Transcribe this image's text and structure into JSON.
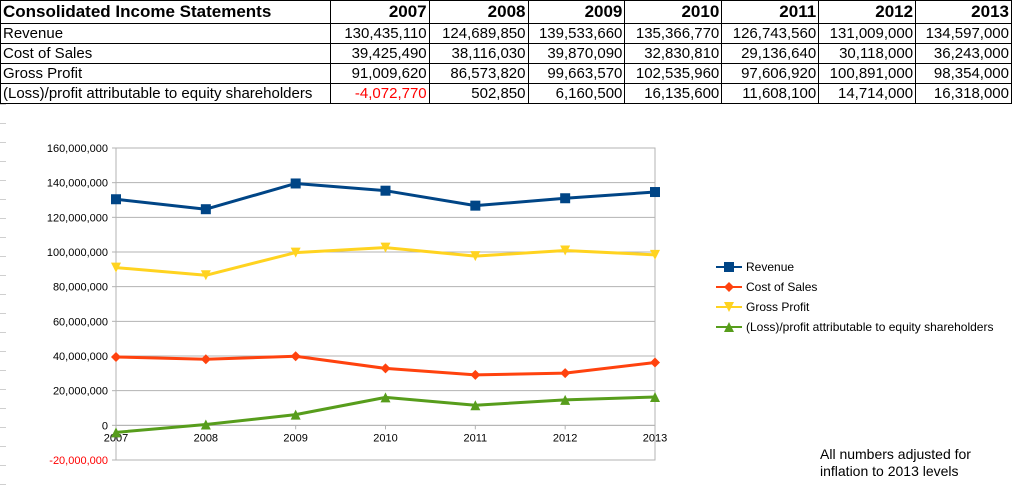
{
  "table": {
    "title": "Consolidated Income Statements",
    "years": [
      "2007",
      "2008",
      "2009",
      "2010",
      "2011",
      "2012",
      "2013"
    ],
    "rows": [
      {
        "label": "Revenue",
        "cells": [
          "130,435,110",
          "124,689,850",
          "139,533,660",
          "135,366,770",
          "126,743,560",
          "131,009,000",
          "134,597,000"
        ]
      },
      {
        "label": "Cost of Sales",
        "cells": [
          "39,425,490",
          "38,116,030",
          "39,870,090",
          "32,830,810",
          "29,136,640",
          "30,118,000",
          "36,243,000"
        ]
      },
      {
        "label": "Gross Profit",
        "cells": [
          "91,009,620",
          "86,573,820",
          "99,663,570",
          "102,535,960",
          "97,606,920",
          "100,891,000",
          "98,354,000"
        ]
      },
      {
        "label": "(Loss)/profit attributable to equity shareholders",
        "cells": [
          "-4,072,770",
          "502,850",
          "6,160,500",
          "16,135,600",
          "11,608,100",
          "14,714,000",
          "16,318,000"
        ]
      }
    ],
    "negative_color": "#ff0000"
  },
  "chart_data": {
    "type": "line",
    "categories": [
      "2007",
      "2008",
      "2009",
      "2010",
      "2011",
      "2012",
      "2013"
    ],
    "series": [
      {
        "name": "Revenue",
        "color": "#004586",
        "marker": "square",
        "values": [
          130435110,
          124689850,
          139533660,
          135366770,
          126743560,
          131009000,
          134597000
        ]
      },
      {
        "name": "Cost of Sales",
        "color": "#ff420e",
        "marker": "diamond",
        "values": [
          39425490,
          38116030,
          39870090,
          32830810,
          29136640,
          30118000,
          36243000
        ]
      },
      {
        "name": "Gross Profit",
        "color": "#ffd320",
        "marker": "triangle-down",
        "values": [
          91009620,
          86573820,
          99663570,
          102535960,
          97606920,
          100891000,
          98354000
        ]
      },
      {
        "name": "(Loss)/profit attributable to equity shareholders",
        "color": "#579d1c",
        "marker": "triangle-up",
        "values": [
          -4072770,
          502850,
          6160500,
          16135600,
          11608100,
          14714000,
          16318000
        ]
      }
    ],
    "ylim": [
      -20000000,
      160000000
    ],
    "yticks": [
      -20000000,
      0,
      20000000,
      40000000,
      60000000,
      80000000,
      100000000,
      120000000,
      140000000,
      160000000
    ],
    "ytick_labels": [
      "-20,000,000",
      "0",
      "20,000,000",
      "40,000,000",
      "60,000,000",
      "80,000,000",
      "100,000,000",
      "120,000,000",
      "140,000,000",
      "160,000,000"
    ],
    "grid": true,
    "legend": "right",
    "title": "",
    "xlabel": "",
    "ylabel": ""
  },
  "note": "All numbers adjusted for\ninflation to 2013 levels"
}
